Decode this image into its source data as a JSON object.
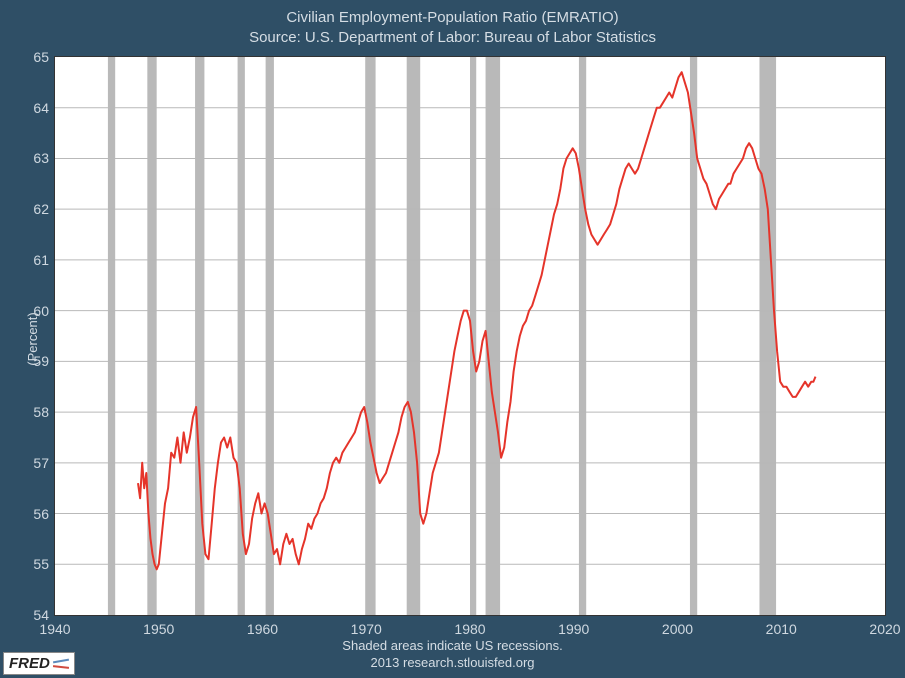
{
  "chart": {
    "type": "line",
    "title_line1": "Civilian Employment-Population Ratio (EMRATIO)",
    "title_line2": "Source: U.S. Department of Labor: Bureau of Labor Statistics",
    "ylabel": "(Percent)",
    "caption_line1": "Shaded areas indicate US recessions.",
    "caption_line2": "2013 research.stlouisfed.org",
    "badge_text": "FRED",
    "background_color": "#2f4f66",
    "plot_background": "#ffffff",
    "border_color": "#333333",
    "grid_color": "#b9b9b9",
    "recession_band_color": "#b9b9b9",
    "line_color": "#e5342a",
    "line_width": 2.0,
    "title_color": "#d5dde4",
    "tick_color": "#cfd8e0",
    "title_fontsize": 15,
    "tick_fontsize": 14,
    "label_fontsize": 13,
    "xlim": [
      1940,
      2020
    ],
    "ylim": [
      54,
      65
    ],
    "xtick_step": 10,
    "ytick_step": 1,
    "xticks": [
      1940,
      1950,
      1960,
      1970,
      1980,
      1990,
      2000,
      2010,
      2020
    ],
    "yticks": [
      54,
      55,
      56,
      57,
      58,
      59,
      60,
      61,
      62,
      63,
      64,
      65
    ],
    "recession_bands": [
      [
        1945.1,
        1945.8
      ],
      [
        1948.9,
        1949.8
      ],
      [
        1953.5,
        1954.4
      ],
      [
        1957.6,
        1958.3
      ],
      [
        1960.3,
        1961.1
      ],
      [
        1969.9,
        1970.9
      ],
      [
        1973.9,
        1975.2
      ],
      [
        1980.0,
        1980.6
      ],
      [
        1981.5,
        1982.9
      ],
      [
        1990.5,
        1991.2
      ],
      [
        2001.2,
        2001.9
      ],
      [
        2007.9,
        2009.5
      ]
    ],
    "series": [
      {
        "x": 1948.0,
        "y": 56.6
      },
      {
        "x": 1948.2,
        "y": 56.3
      },
      {
        "x": 1948.4,
        "y": 57.0
      },
      {
        "x": 1948.6,
        "y": 56.5
      },
      {
        "x": 1948.8,
        "y": 56.8
      },
      {
        "x": 1949.0,
        "y": 56.0
      },
      {
        "x": 1949.2,
        "y": 55.5
      },
      {
        "x": 1949.4,
        "y": 55.2
      },
      {
        "x": 1949.6,
        "y": 55.0
      },
      {
        "x": 1949.8,
        "y": 54.9
      },
      {
        "x": 1950.0,
        "y": 55.0
      },
      {
        "x": 1950.3,
        "y": 55.6
      },
      {
        "x": 1950.6,
        "y": 56.2
      },
      {
        "x": 1950.9,
        "y": 56.5
      },
      {
        "x": 1951.2,
        "y": 57.2
      },
      {
        "x": 1951.5,
        "y": 57.1
      },
      {
        "x": 1951.8,
        "y": 57.5
      },
      {
        "x": 1952.1,
        "y": 57.0
      },
      {
        "x": 1952.4,
        "y": 57.6
      },
      {
        "x": 1952.7,
        "y": 57.2
      },
      {
        "x": 1953.0,
        "y": 57.5
      },
      {
        "x": 1953.3,
        "y": 57.9
      },
      {
        "x": 1953.6,
        "y": 58.1
      },
      {
        "x": 1953.9,
        "y": 57.0
      },
      {
        "x": 1954.2,
        "y": 55.8
      },
      {
        "x": 1954.5,
        "y": 55.2
      },
      {
        "x": 1954.8,
        "y": 55.1
      },
      {
        "x": 1955.1,
        "y": 55.8
      },
      {
        "x": 1955.4,
        "y": 56.5
      },
      {
        "x": 1955.7,
        "y": 57.0
      },
      {
        "x": 1956.0,
        "y": 57.4
      },
      {
        "x": 1956.3,
        "y": 57.5
      },
      {
        "x": 1956.6,
        "y": 57.3
      },
      {
        "x": 1956.9,
        "y": 57.5
      },
      {
        "x": 1957.2,
        "y": 57.1
      },
      {
        "x": 1957.5,
        "y": 57.0
      },
      {
        "x": 1957.8,
        "y": 56.5
      },
      {
        "x": 1958.1,
        "y": 55.6
      },
      {
        "x": 1958.4,
        "y": 55.2
      },
      {
        "x": 1958.7,
        "y": 55.4
      },
      {
        "x": 1959.0,
        "y": 55.9
      },
      {
        "x": 1959.3,
        "y": 56.2
      },
      {
        "x": 1959.6,
        "y": 56.4
      },
      {
        "x": 1959.9,
        "y": 56.0
      },
      {
        "x": 1960.2,
        "y": 56.2
      },
      {
        "x": 1960.5,
        "y": 56.0
      },
      {
        "x": 1960.8,
        "y": 55.6
      },
      {
        "x": 1961.1,
        "y": 55.2
      },
      {
        "x": 1961.4,
        "y": 55.3
      },
      {
        "x": 1961.7,
        "y": 55.0
      },
      {
        "x": 1962.0,
        "y": 55.4
      },
      {
        "x": 1962.3,
        "y": 55.6
      },
      {
        "x": 1962.6,
        "y": 55.4
      },
      {
        "x": 1962.9,
        "y": 55.5
      },
      {
        "x": 1963.2,
        "y": 55.2
      },
      {
        "x": 1963.5,
        "y": 55.0
      },
      {
        "x": 1963.8,
        "y": 55.3
      },
      {
        "x": 1964.1,
        "y": 55.5
      },
      {
        "x": 1964.4,
        "y": 55.8
      },
      {
        "x": 1964.7,
        "y": 55.7
      },
      {
        "x": 1965.0,
        "y": 55.9
      },
      {
        "x": 1965.3,
        "y": 56.0
      },
      {
        "x": 1965.6,
        "y": 56.2
      },
      {
        "x": 1965.9,
        "y": 56.3
      },
      {
        "x": 1966.2,
        "y": 56.5
      },
      {
        "x": 1966.5,
        "y": 56.8
      },
      {
        "x": 1966.8,
        "y": 57.0
      },
      {
        "x": 1967.1,
        "y": 57.1
      },
      {
        "x": 1967.4,
        "y": 57.0
      },
      {
        "x": 1967.7,
        "y": 57.2
      },
      {
        "x": 1968.0,
        "y": 57.3
      },
      {
        "x": 1968.3,
        "y": 57.4
      },
      {
        "x": 1968.6,
        "y": 57.5
      },
      {
        "x": 1968.9,
        "y": 57.6
      },
      {
        "x": 1969.2,
        "y": 57.8
      },
      {
        "x": 1969.5,
        "y": 58.0
      },
      {
        "x": 1969.8,
        "y": 58.1
      },
      {
        "x": 1970.1,
        "y": 57.8
      },
      {
        "x": 1970.4,
        "y": 57.4
      },
      {
        "x": 1970.7,
        "y": 57.1
      },
      {
        "x": 1971.0,
        "y": 56.8
      },
      {
        "x": 1971.3,
        "y": 56.6
      },
      {
        "x": 1971.6,
        "y": 56.7
      },
      {
        "x": 1971.9,
        "y": 56.8
      },
      {
        "x": 1972.2,
        "y": 57.0
      },
      {
        "x": 1972.5,
        "y": 57.2
      },
      {
        "x": 1972.8,
        "y": 57.4
      },
      {
        "x": 1973.1,
        "y": 57.6
      },
      {
        "x": 1973.4,
        "y": 57.9
      },
      {
        "x": 1973.7,
        "y": 58.1
      },
      {
        "x": 1974.0,
        "y": 58.2
      },
      {
        "x": 1974.3,
        "y": 58.0
      },
      {
        "x": 1974.6,
        "y": 57.6
      },
      {
        "x": 1974.9,
        "y": 57.0
      },
      {
        "x": 1975.2,
        "y": 56.0
      },
      {
        "x": 1975.5,
        "y": 55.8
      },
      {
        "x": 1975.8,
        "y": 56.0
      },
      {
        "x": 1976.1,
        "y": 56.4
      },
      {
        "x": 1976.4,
        "y": 56.8
      },
      {
        "x": 1976.7,
        "y": 57.0
      },
      {
        "x": 1977.0,
        "y": 57.2
      },
      {
        "x": 1977.3,
        "y": 57.6
      },
      {
        "x": 1977.6,
        "y": 58.0
      },
      {
        "x": 1977.9,
        "y": 58.4
      },
      {
        "x": 1978.2,
        "y": 58.8
      },
      {
        "x": 1978.5,
        "y": 59.2
      },
      {
        "x": 1978.8,
        "y": 59.5
      },
      {
        "x": 1979.1,
        "y": 59.8
      },
      {
        "x": 1979.4,
        "y": 60.0
      },
      {
        "x": 1979.7,
        "y": 60.0
      },
      {
        "x": 1980.0,
        "y": 59.8
      },
      {
        "x": 1980.3,
        "y": 59.2
      },
      {
        "x": 1980.6,
        "y": 58.8
      },
      {
        "x": 1980.9,
        "y": 59.0
      },
      {
        "x": 1981.2,
        "y": 59.4
      },
      {
        "x": 1981.5,
        "y": 59.6
      },
      {
        "x": 1981.8,
        "y": 59.0
      },
      {
        "x": 1982.1,
        "y": 58.4
      },
      {
        "x": 1982.4,
        "y": 58.0
      },
      {
        "x": 1982.7,
        "y": 57.6
      },
      {
        "x": 1983.0,
        "y": 57.1
      },
      {
        "x": 1983.3,
        "y": 57.3
      },
      {
        "x": 1983.6,
        "y": 57.8
      },
      {
        "x": 1983.9,
        "y": 58.2
      },
      {
        "x": 1984.2,
        "y": 58.8
      },
      {
        "x": 1984.5,
        "y": 59.2
      },
      {
        "x": 1984.8,
        "y": 59.5
      },
      {
        "x": 1985.1,
        "y": 59.7
      },
      {
        "x": 1985.4,
        "y": 59.8
      },
      {
        "x": 1985.7,
        "y": 60.0
      },
      {
        "x": 1986.0,
        "y": 60.1
      },
      {
        "x": 1986.3,
        "y": 60.3
      },
      {
        "x": 1986.6,
        "y": 60.5
      },
      {
        "x": 1986.9,
        "y": 60.7
      },
      {
        "x": 1987.2,
        "y": 61.0
      },
      {
        "x": 1987.5,
        "y": 61.3
      },
      {
        "x": 1987.8,
        "y": 61.6
      },
      {
        "x": 1988.1,
        "y": 61.9
      },
      {
        "x": 1988.4,
        "y": 62.1
      },
      {
        "x": 1988.7,
        "y": 62.4
      },
      {
        "x": 1989.0,
        "y": 62.8
      },
      {
        "x": 1989.3,
        "y": 63.0
      },
      {
        "x": 1989.6,
        "y": 63.1
      },
      {
        "x": 1989.9,
        "y": 63.2
      },
      {
        "x": 1990.2,
        "y": 63.1
      },
      {
        "x": 1990.5,
        "y": 62.8
      },
      {
        "x": 1990.8,
        "y": 62.4
      },
      {
        "x": 1991.1,
        "y": 62.0
      },
      {
        "x": 1991.4,
        "y": 61.7
      },
      {
        "x": 1991.7,
        "y": 61.5
      },
      {
        "x": 1992.0,
        "y": 61.4
      },
      {
        "x": 1992.3,
        "y": 61.3
      },
      {
        "x": 1992.6,
        "y": 61.4
      },
      {
        "x": 1992.9,
        "y": 61.5
      },
      {
        "x": 1993.2,
        "y": 61.6
      },
      {
        "x": 1993.5,
        "y": 61.7
      },
      {
        "x": 1993.8,
        "y": 61.9
      },
      {
        "x": 1994.1,
        "y": 62.1
      },
      {
        "x": 1994.4,
        "y": 62.4
      },
      {
        "x": 1994.7,
        "y": 62.6
      },
      {
        "x": 1995.0,
        "y": 62.8
      },
      {
        "x": 1995.3,
        "y": 62.9
      },
      {
        "x": 1995.6,
        "y": 62.8
      },
      {
        "x": 1995.9,
        "y": 62.7
      },
      {
        "x": 1996.2,
        "y": 62.8
      },
      {
        "x": 1996.5,
        "y": 63.0
      },
      {
        "x": 1996.8,
        "y": 63.2
      },
      {
        "x": 1997.1,
        "y": 63.4
      },
      {
        "x": 1997.4,
        "y": 63.6
      },
      {
        "x": 1997.7,
        "y": 63.8
      },
      {
        "x": 1998.0,
        "y": 64.0
      },
      {
        "x": 1998.3,
        "y": 64.0
      },
      {
        "x": 1998.6,
        "y": 64.1
      },
      {
        "x": 1998.9,
        "y": 64.2
      },
      {
        "x": 1999.2,
        "y": 64.3
      },
      {
        "x": 1999.5,
        "y": 64.2
      },
      {
        "x": 1999.8,
        "y": 64.4
      },
      {
        "x": 2000.1,
        "y": 64.6
      },
      {
        "x": 2000.4,
        "y": 64.7
      },
      {
        "x": 2000.7,
        "y": 64.5
      },
      {
        "x": 2001.0,
        "y": 64.3
      },
      {
        "x": 2001.3,
        "y": 63.9
      },
      {
        "x": 2001.6,
        "y": 63.5
      },
      {
        "x": 2001.9,
        "y": 63.0
      },
      {
        "x": 2002.2,
        "y": 62.8
      },
      {
        "x": 2002.5,
        "y": 62.6
      },
      {
        "x": 2002.8,
        "y": 62.5
      },
      {
        "x": 2003.1,
        "y": 62.3
      },
      {
        "x": 2003.4,
        "y": 62.1
      },
      {
        "x": 2003.7,
        "y": 62.0
      },
      {
        "x": 2004.0,
        "y": 62.2
      },
      {
        "x": 2004.3,
        "y": 62.3
      },
      {
        "x": 2004.6,
        "y": 62.4
      },
      {
        "x": 2004.9,
        "y": 62.5
      },
      {
        "x": 2005.1,
        "y": 62.5
      },
      {
        "x": 2005.4,
        "y": 62.7
      },
      {
        "x": 2005.7,
        "y": 62.8
      },
      {
        "x": 2006.0,
        "y": 62.9
      },
      {
        "x": 2006.3,
        "y": 63.0
      },
      {
        "x": 2006.6,
        "y": 63.2
      },
      {
        "x": 2006.9,
        "y": 63.3
      },
      {
        "x": 2007.2,
        "y": 63.2
      },
      {
        "x": 2007.5,
        "y": 63.0
      },
      {
        "x": 2007.8,
        "y": 62.8
      },
      {
        "x": 2008.1,
        "y": 62.7
      },
      {
        "x": 2008.4,
        "y": 62.4
      },
      {
        "x": 2008.7,
        "y": 62.0
      },
      {
        "x": 2009.0,
        "y": 61.0
      },
      {
        "x": 2009.3,
        "y": 60.0
      },
      {
        "x": 2009.6,
        "y": 59.2
      },
      {
        "x": 2009.9,
        "y": 58.6
      },
      {
        "x": 2010.2,
        "y": 58.5
      },
      {
        "x": 2010.5,
        "y": 58.5
      },
      {
        "x": 2010.8,
        "y": 58.4
      },
      {
        "x": 2011.1,
        "y": 58.3
      },
      {
        "x": 2011.4,
        "y": 58.3
      },
      {
        "x": 2011.7,
        "y": 58.4
      },
      {
        "x": 2012.0,
        "y": 58.5
      },
      {
        "x": 2012.3,
        "y": 58.6
      },
      {
        "x": 2012.6,
        "y": 58.5
      },
      {
        "x": 2012.9,
        "y": 58.6
      },
      {
        "x": 2013.1,
        "y": 58.6
      },
      {
        "x": 2013.3,
        "y": 58.7
      }
    ]
  }
}
